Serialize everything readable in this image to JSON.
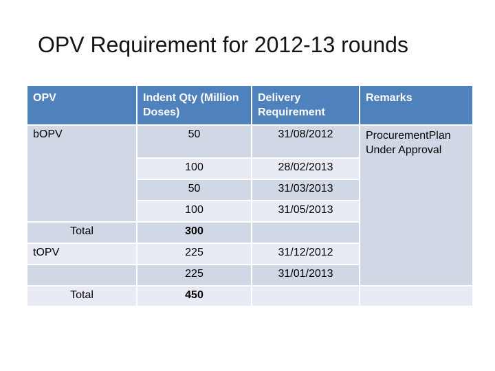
{
  "slide_title": "OPV Requirement for 2012-13 rounds",
  "colors": {
    "header_bg": "#4f81bd",
    "header_text": "#ffffff",
    "band_dark": "#d0d7e5",
    "band_light": "#e9ebf4",
    "body_text": "#000000",
    "slide_bg": "#ffffff"
  },
  "table": {
    "headers": {
      "opv": "OPV",
      "qty": "Indent Qty (Million Doses)",
      "delivery": "Delivery Requirement",
      "remarks": "Remarks"
    },
    "rows": [
      {
        "opv": "bOPV",
        "qty": "50",
        "delivery": "31/08/2012",
        "remarks": "ProcurementPlan Under Approval"
      },
      {
        "opv": "",
        "qty": "100",
        "delivery": "28/02/2013",
        "remarks": ""
      },
      {
        "opv": "",
        "qty": "50",
        "delivery": "31/03/2013",
        "remarks": ""
      },
      {
        "opv": "",
        "qty": "100",
        "delivery": "31/05/2013",
        "remarks": ""
      },
      {
        "opv": "Total",
        "qty": "300",
        "delivery": "",
        "remarks": ""
      },
      {
        "opv": "tOPV",
        "qty": "225",
        "delivery": "31/12/2012",
        "remarks": ""
      },
      {
        "opv": "",
        "qty": "225",
        "delivery": "31/01/2013",
        "remarks": ""
      },
      {
        "opv": "Total",
        "qty": "450",
        "delivery": "",
        "remarks": ""
      }
    ]
  }
}
